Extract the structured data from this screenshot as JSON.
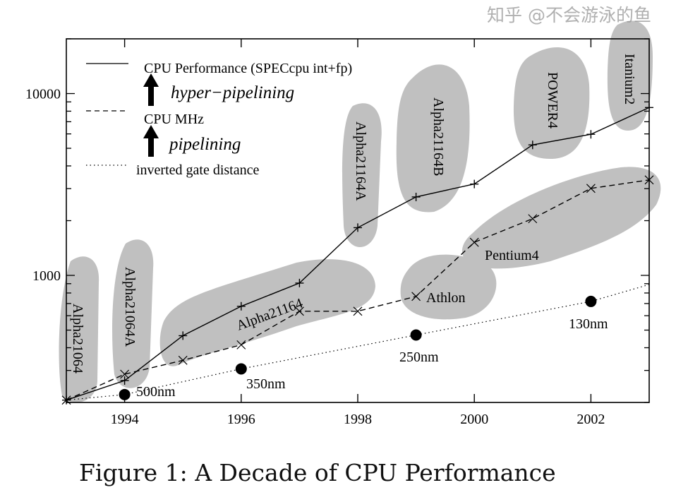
{
  "caption": "Figure 1: A Decade of CPU Performance",
  "watermark": "知乎 @不会游泳的鱼",
  "chart_data": {
    "type": "line",
    "title": "",
    "xlabel": "",
    "ylabel": "",
    "xlim": [
      1993,
      2003
    ],
    "ylim": [
      200,
      20000
    ],
    "yscale": "log",
    "x_ticks": [
      "1994",
      "1996",
      "1998",
      "2000",
      "2002"
    ],
    "y_ticks": [
      "1000",
      "10000"
    ],
    "grid": false,
    "legend_position": "top-left",
    "colors": {
      "blob": "#c0c0c0",
      "line": "#000000"
    },
    "legend": [
      {
        "label": "CPU Performance (SPECcpu int+fp)",
        "style": "solid"
      },
      {
        "label": "CPU MHz",
        "style": "dashed"
      },
      {
        "label": "inverted gate distance",
        "style": "dotted"
      }
    ],
    "arrow_annotations": [
      "hyper−pipelining",
      "pipelining"
    ],
    "series": [
      {
        "name": "CPU Performance (SPECcpu int+fp)",
        "marker": "+",
        "style": "solid",
        "x": [
          1993,
          1994,
          1995,
          1996,
          1997,
          1998,
          1999,
          2000,
          2001,
          2002,
          2003
        ],
        "y": [
          206,
          264,
          466,
          676,
          907,
          1830,
          2700,
          3180,
          5220,
          5970,
          8380
        ]
      },
      {
        "name": "CPU MHz",
        "marker": "x",
        "style": "dashed",
        "x": [
          1993,
          1994,
          1995,
          1996,
          1997,
          1998,
          1999,
          2000,
          2001,
          2002,
          2003
        ],
        "y": [
          206,
          286,
          341,
          415,
          635,
          635,
          766,
          1520,
          2050,
          3010,
          3350
        ]
      },
      {
        "name": "inverted gate distance",
        "marker": "dot",
        "style": "dotted",
        "x": [
          1994,
          1996,
          1999,
          2002
        ],
        "y": [
          221,
          306,
          470,
          719
        ],
        "labels": [
          "500nm",
          "350nm",
          "250nm",
          "130nm"
        ]
      }
    ],
    "regions": [
      "Alpha21064",
      "Alpha21064A",
      "Alpha21164",
      "Alpha21164A",
      "Alpha21164B",
      "POWER4",
      "Itanium2",
      "Pentium4",
      "Athlon"
    ]
  }
}
